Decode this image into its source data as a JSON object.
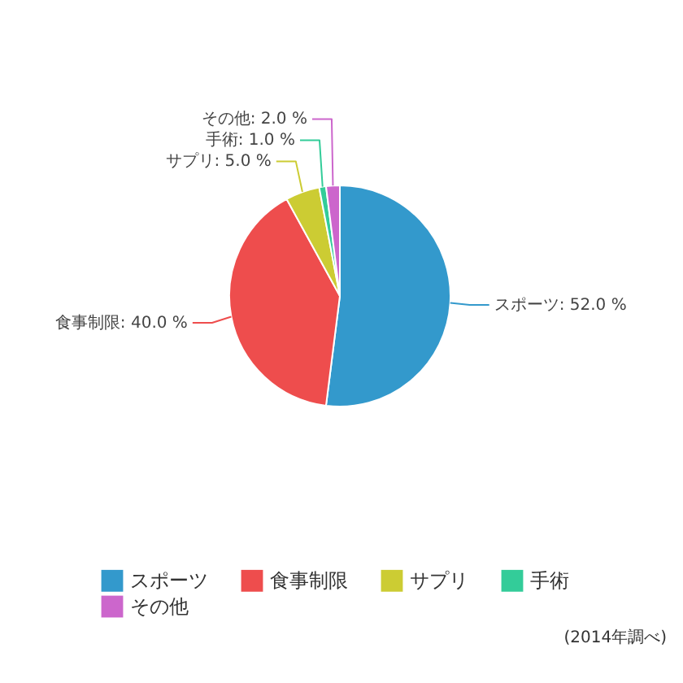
{
  "chart_data": {
    "type": "pie",
    "categories": [
      "スポーツ",
      "食事制限",
      "サプリ",
      "手術",
      "その他"
    ],
    "values": [
      52.0,
      40.0,
      5.0,
      1.0,
      2.0
    ],
    "colors": [
      "#3399cc",
      "#ee4d4d",
      "#cccc33",
      "#33cc99",
      "#cc66cc"
    ],
    "value_labels": [
      "スポーツ: 52.0 %",
      "食事制限: 40.0 %",
      "サプリ: 5.0 %",
      "手術: 1.0 %",
      "その他: 2.0 %"
    ],
    "legend": "bottom",
    "annotations": [
      "(2014年調べ)"
    ]
  }
}
